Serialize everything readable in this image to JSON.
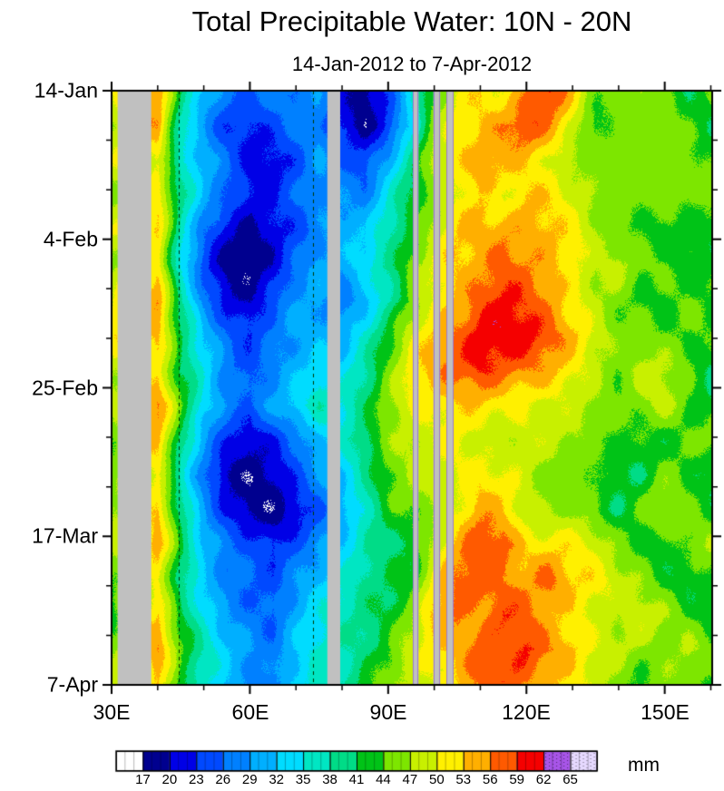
{
  "chart_data": {
    "type": "heatmap",
    "title": "Total Precipitable Water: 10N - 20N",
    "subtitle": "14-Jan-2012 to 7-Apr-2012",
    "units": "mm",
    "x_axis": {
      "tick_labels": [
        "30E",
        "60E",
        "90E",
        "120E",
        "150E"
      ],
      "tick_lons": [
        30,
        60,
        90,
        120,
        150
      ],
      "minor_step_deg": 10,
      "range_lon": [
        30,
        160.3
      ]
    },
    "y_axis": {
      "tick_labels": [
        "14-Jan",
        "4-Feb",
        "25-Feb",
        "17-Mar",
        "7-Apr"
      ],
      "tick_days": [
        0,
        21,
        42,
        63,
        84
      ],
      "minor_step_days": 7,
      "range_days": [
        0,
        84
      ]
    },
    "levels": [
      17,
      20,
      23,
      26,
      29,
      32,
      35,
      38,
      41,
      44,
      47,
      50,
      53,
      56,
      59,
      62,
      65
    ],
    "colors": [
      "#FFFFFF",
      "#00008F",
      "#0000E6",
      "#0049FF",
      "#0080FF",
      "#00AFFF",
      "#00DCFF",
      "#00E6C3",
      "#00DC87",
      "#00C317",
      "#7DE600",
      "#C8F000",
      "#FFF000",
      "#FFAF00",
      "#FF5A00",
      "#F50000",
      "#A855E8",
      "#E6D9FF"
    ],
    "missing_color": "#C0C0C0",
    "missing_edge_color": "#9B78D2",
    "missing_bands_lon": [
      [
        31.3,
        38.6
      ],
      [
        76.8,
        79.6
      ],
      [
        95.4,
        96.6
      ],
      [
        99.8,
        101.3
      ],
      [
        102.7,
        104.2
      ]
    ],
    "dashed_line_lons": [
      44.6,
      73.7
    ],
    "dashed_line_color": "#003800",
    "x": [
      30,
      35,
      40,
      45,
      50,
      55,
      60,
      65,
      70,
      75,
      80,
      85,
      90,
      95,
      100,
      105,
      110,
      115,
      120,
      125,
      130,
      135,
      140,
      145,
      150,
      155,
      160
    ],
    "y_dates": [
      "14-Jan",
      "19-Jan",
      "24-Jan",
      "29-Jan",
      "3-Feb",
      "8-Feb",
      "13-Feb",
      "18-Feb",
      "23-Feb",
      "28-Feb",
      "4-Mar",
      "9-Mar",
      "14-Mar",
      "19-Mar",
      "24-Mar",
      "29-Mar",
      "3-Apr",
      "7-Apr"
    ],
    "values": [
      [
        50,
        null,
        54,
        42,
        34,
        28,
        26,
        27,
        28,
        30,
        24,
        20,
        26,
        36,
        44,
        50,
        54,
        52,
        56,
        58,
        52,
        46,
        44,
        48,
        46,
        43,
        45
      ],
      [
        46,
        null,
        56,
        38,
        30,
        25,
        23,
        25,
        27,
        28,
        22,
        19,
        24,
        34,
        46,
        52,
        55,
        57,
        58,
        54,
        50,
        44,
        47,
        44,
        48,
        45,
        42
      ],
      [
        48,
        null,
        50,
        36,
        32,
        27,
        24,
        23,
        26,
        30,
        26,
        24,
        30,
        38,
        48,
        54,
        56,
        54,
        52,
        50,
        47,
        49,
        45,
        47,
        44,
        46,
        43
      ],
      [
        44,
        null,
        52,
        40,
        30,
        26,
        22,
        24,
        28,
        31,
        29,
        27,
        33,
        41,
        47,
        51,
        53,
        50,
        54,
        52,
        49,
        46,
        48,
        44,
        47,
        43,
        45
      ],
      [
        50,
        null,
        55,
        38,
        28,
        22,
        19,
        21,
        25,
        29,
        32,
        30,
        36,
        43,
        49,
        53,
        55,
        57,
        55,
        53,
        50,
        47,
        44,
        46,
        43,
        45,
        42
      ],
      [
        47,
        null,
        53,
        36,
        26,
        20,
        18,
        20,
        26,
        31,
        29,
        33,
        39,
        46,
        50,
        54,
        57,
        59,
        57,
        54,
        51,
        46,
        48,
        44,
        46,
        43,
        44
      ],
      [
        49,
        null,
        56,
        39,
        28,
        22,
        20,
        23,
        28,
        30,
        27,
        31,
        37,
        44,
        50,
        55,
        59,
        61,
        59,
        56,
        52,
        49,
        45,
        43,
        42,
        45,
        43
      ],
      [
        51,
        null,
        54,
        41,
        31,
        26,
        23,
        26,
        30,
        33,
        31,
        35,
        41,
        48,
        53,
        57,
        61,
        61,
        60,
        57,
        54,
        50,
        47,
        45,
        43,
        42,
        44
      ],
      [
        47,
        null,
        52,
        39,
        33,
        28,
        26,
        28,
        32,
        36,
        33,
        37,
        43,
        50,
        54,
        58,
        60,
        58,
        56,
        54,
        50,
        47,
        45,
        48,
        46,
        44,
        42
      ],
      [
        49,
        null,
        55,
        43,
        34,
        30,
        27,
        29,
        33,
        38,
        36,
        40,
        46,
        50,
        52,
        54,
        55,
        53,
        51,
        49,
        47,
        45,
        44,
        46,
        48,
        45,
        43
      ],
      [
        46,
        null,
        53,
        40,
        30,
        24,
        20,
        21,
        25,
        31,
        35,
        41,
        46,
        48,
        50,
        52,
        50,
        48,
        50,
        48,
        46,
        43,
        46,
        44,
        42,
        44,
        46
      ],
      [
        44,
        null,
        51,
        36,
        26,
        19,
        18,
        19,
        23,
        27,
        31,
        37,
        43,
        46,
        48,
        50,
        52,
        50,
        48,
        46,
        44,
        46,
        43,
        41,
        44,
        42,
        40
      ],
      [
        47,
        null,
        53,
        38,
        27,
        21,
        18,
        18,
        21,
        25,
        29,
        35,
        41,
        43,
        46,
        50,
        54,
        52,
        50,
        48,
        46,
        43,
        41,
        44,
        46,
        43,
        41
      ],
      [
        49,
        null,
        55,
        41,
        30,
        25,
        23,
        21,
        25,
        29,
        33,
        37,
        39,
        41,
        48,
        53,
        57,
        59,
        54,
        52,
        50,
        48,
        45,
        43,
        41,
        44,
        46
      ],
      [
        46,
        null,
        51,
        39,
        32,
        27,
        25,
        23,
        27,
        31,
        35,
        39,
        41,
        43,
        50,
        55,
        59,
        57,
        55,
        57,
        52,
        50,
        48,
        46,
        43,
        41,
        44
      ],
      [
        44,
        null,
        53,
        41,
        34,
        29,
        27,
        25,
        29,
        33,
        37,
        41,
        43,
        45,
        52,
        57,
        55,
        59,
        57,
        54,
        52,
        48,
        45,
        48,
        46,
        43,
        41
      ],
      [
        46,
        null,
        55,
        43,
        36,
        31,
        29,
        27,
        31,
        35,
        39,
        41,
        43,
        47,
        52,
        54,
        57,
        55,
        59,
        56,
        54,
        50,
        48,
        45,
        43,
        46,
        44
      ],
      [
        49,
        null,
        53,
        41,
        34,
        30,
        28,
        29,
        33,
        37,
        39,
        43,
        45,
        47,
        50,
        52,
        55,
        57,
        54,
        52,
        50,
        48,
        45,
        43,
        46,
        44,
        42
      ]
    ],
    "colorbar": {
      "tick_labels": [
        "17",
        "20",
        "23",
        "26",
        "29",
        "32",
        "35",
        "38",
        "41",
        "44",
        "47",
        "50",
        "53",
        "56",
        "59",
        "62",
        "65"
      ]
    }
  }
}
